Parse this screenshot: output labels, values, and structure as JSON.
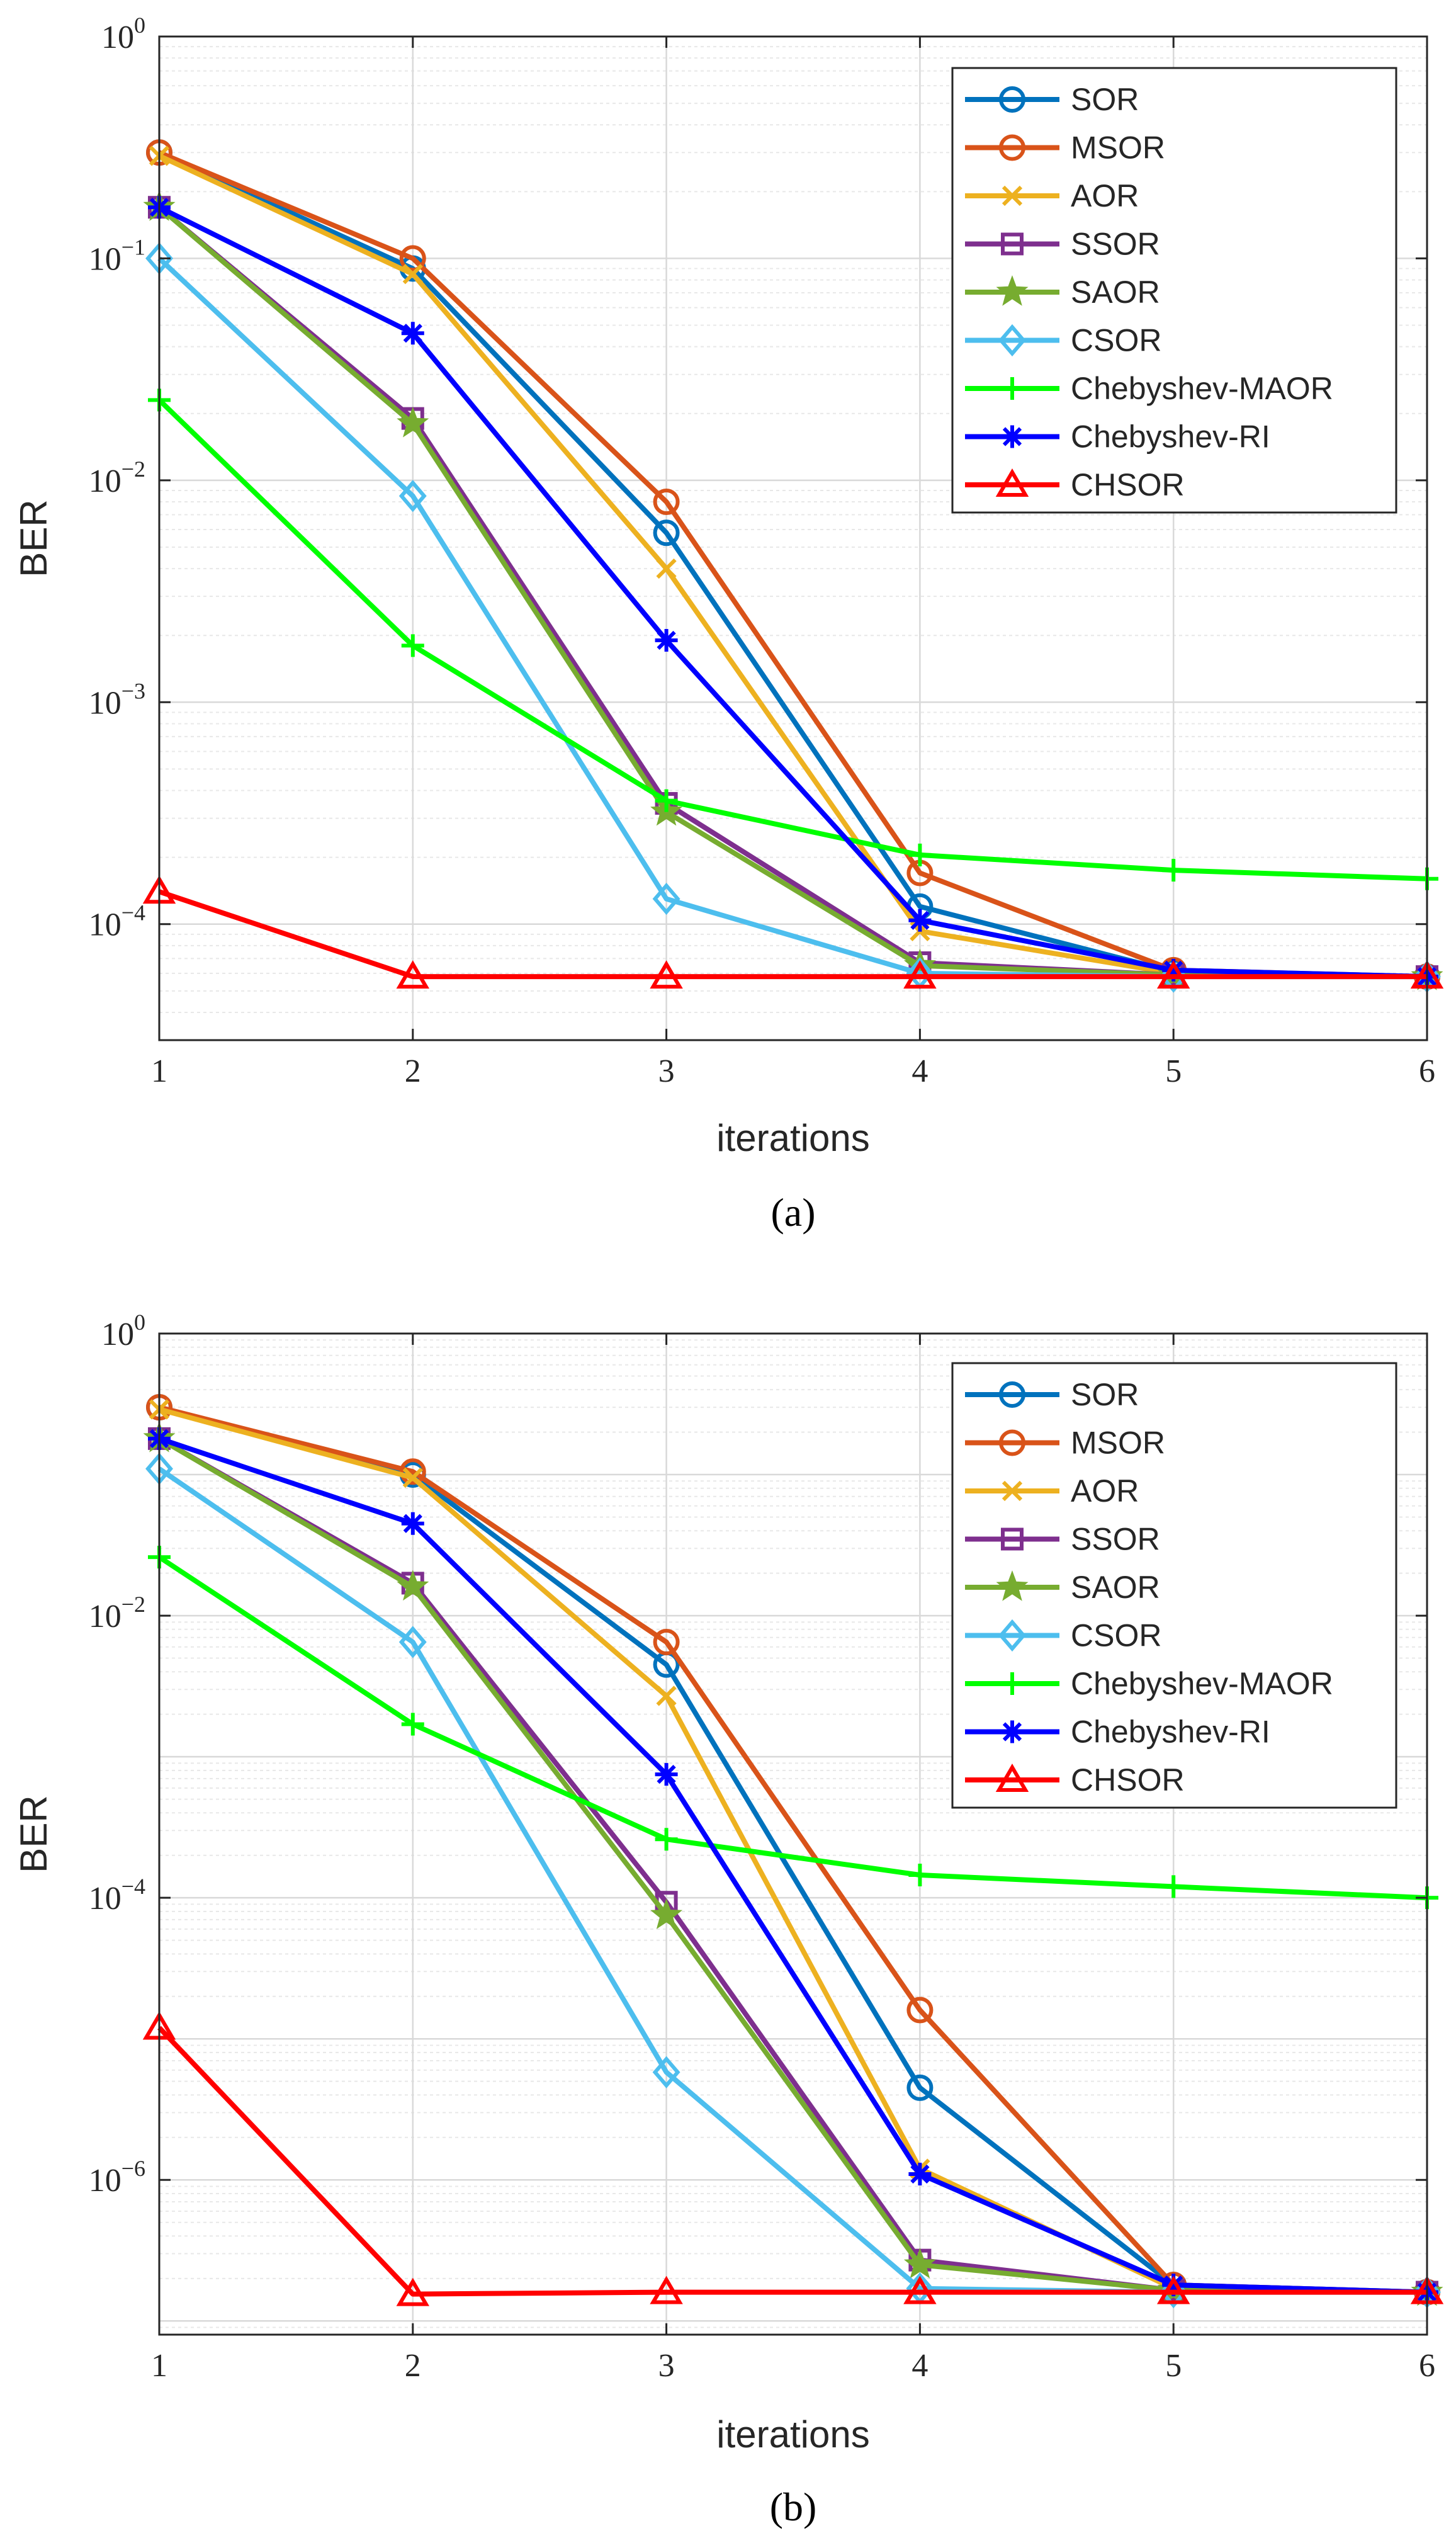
{
  "chart_data": [
    {
      "type": "line",
      "subfigure_label": "(a)",
      "xlabel": "iterations",
      "ylabel": "BER",
      "yscale": "log",
      "x": [
        1,
        2,
        3,
        4,
        5,
        6
      ],
      "xticks": [
        "1",
        "2",
        "3",
        "4",
        "5",
        "6"
      ],
      "yticks": [
        {
          "base": "10",
          "exp": "0",
          "value": 1
        },
        {
          "base": "10",
          "exp": "−1",
          "value": 0.1
        },
        {
          "base": "10",
          "exp": "−2",
          "value": 0.01
        },
        {
          "base": "10",
          "exp": "−3",
          "value": 0.001
        },
        {
          "base": "10",
          "exp": "−4",
          "value": 0.0001
        }
      ],
      "ylim": [
        3e-05,
        1
      ],
      "xlim": [
        1,
        6
      ],
      "grid": true,
      "legend_position": "top-right",
      "series": [
        {
          "name": "SOR",
          "color": "#0072BD",
          "marker": "circle",
          "values": [
            0.3,
            0.09,
            0.0058,
            0.00012,
            6.1e-05,
            5.8e-05
          ]
        },
        {
          "name": "MSOR",
          "color": "#D95319",
          "marker": "circle",
          "values": [
            0.3,
            0.1,
            0.008,
            0.00017,
            6.2e-05,
            5.8e-05
          ]
        },
        {
          "name": "AOR",
          "color": "#EDB120",
          "marker": "x",
          "values": [
            0.29,
            0.085,
            0.004,
            9.3e-05,
            6e-05,
            5.8e-05
          ]
        },
        {
          "name": "SSOR",
          "color": "#7E2F8E",
          "marker": "square",
          "values": [
            0.17,
            0.019,
            0.00035,
            6.7e-05,
            5.9e-05,
            5.8e-05
          ]
        },
        {
          "name": "SAOR",
          "color": "#77AC30",
          "marker": "star",
          "values": [
            0.17,
            0.018,
            0.00032,
            6.5e-05,
            5.9e-05,
            5.8e-05
          ]
        },
        {
          "name": "CSOR",
          "color": "#4DBEEE",
          "marker": "diamond",
          "values": [
            0.1,
            0.0085,
            0.00013,
            6e-05,
            5.8e-05,
            5.8e-05
          ]
        },
        {
          "name": "Chebyshev-MAOR",
          "color": "#00FF00",
          "marker": "plus",
          "values": [
            0.023,
            0.0018,
            0.00036,
            0.000205,
            0.000175,
            0.00016
          ]
        },
        {
          "name": "Chebyshev-RI",
          "color": "#0000FF",
          "marker": "asterisk",
          "values": [
            0.17,
            0.046,
            0.0019,
            0.000104,
            6.2e-05,
            5.8e-05
          ]
        },
        {
          "name": "CHSOR",
          "color": "#FF0000",
          "marker": "triangle",
          "values": [
            0.00014,
            5.8e-05,
            5.8e-05,
            5.8e-05,
            5.8e-05,
            5.8e-05
          ]
        }
      ]
    },
    {
      "type": "line",
      "subfigure_label": "(b)",
      "xlabel": "iterations",
      "ylabel": "BER",
      "yscale": "log",
      "x": [
        1,
        2,
        3,
        4,
        5,
        6
      ],
      "xticks": [
        "1",
        "2",
        "3",
        "4",
        "5",
        "6"
      ],
      "yticks": [
        {
          "base": "10",
          "exp": "0",
          "value": 1
        },
        {
          "base": "10",
          "exp": "−2",
          "value": 0.01
        },
        {
          "base": "10",
          "exp": "−4",
          "value": 0.0001
        },
        {
          "base": "10",
          "exp": "−6",
          "value": 1e-06
        }
      ],
      "ylim": [
        8e-08,
        1
      ],
      "xlim": [
        1,
        6
      ],
      "grid": true,
      "legend_position": "top-right",
      "series": [
        {
          "name": "SOR",
          "color": "#0072BD",
          "marker": "circle",
          "values": [
            0.3,
            0.1,
            0.0045,
            4.5e-06,
            1.8e-07,
            1.6e-07
          ]
        },
        {
          "name": "MSOR",
          "color": "#D95319",
          "marker": "circle",
          "values": [
            0.3,
            0.105,
            0.0065,
            1.6e-05,
            1.8e-07,
            1.6e-07
          ]
        },
        {
          "name": "AOR",
          "color": "#EDB120",
          "marker": "x",
          "values": [
            0.29,
            0.095,
            0.0027,
            1.2e-06,
            1.7e-07,
            1.6e-07
          ]
        },
        {
          "name": "SSOR",
          "color": "#7E2F8E",
          "marker": "square",
          "values": [
            0.18,
            0.017,
            9.3e-05,
            2.7e-07,
            1.65e-07,
            1.6e-07
          ]
        },
        {
          "name": "SAOR",
          "color": "#77AC30",
          "marker": "star",
          "values": [
            0.18,
            0.016,
            7.5e-05,
            2.5e-07,
            1.65e-07,
            1.6e-07
          ]
        },
        {
          "name": "CSOR",
          "color": "#4DBEEE",
          "marker": "diamond",
          "values": [
            0.11,
            0.0065,
            5.8e-06,
            1.7e-07,
            1.6e-07,
            1.6e-07
          ]
        },
        {
          "name": "Chebyshev-MAOR",
          "color": "#00FF00",
          "marker": "plus",
          "values": [
            0.026,
            0.0017,
            0.00026,
            0.000145,
            0.00012,
            0.0001
          ]
        },
        {
          "name": "Chebyshev-RI",
          "color": "#0000FF",
          "marker": "asterisk",
          "values": [
            0.18,
            0.045,
            0.00075,
            1.1e-06,
            1.8e-07,
            1.6e-07
          ]
        },
        {
          "name": "CHSOR",
          "color": "#FF0000",
          "marker": "triangle",
          "values": [
            1.2e-05,
            1.55e-07,
            1.6e-07,
            1.6e-07,
            1.6e-07,
            1.6e-07
          ]
        }
      ]
    }
  ]
}
